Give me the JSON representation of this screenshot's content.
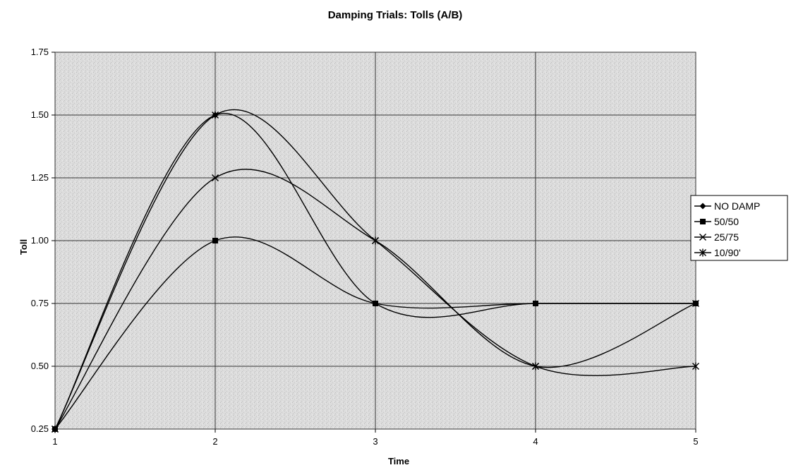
{
  "chart_data": {
    "type": "line",
    "title": "Damping Trials: Tolls (A/B)",
    "xlabel": "Time",
    "ylabel": "Toll",
    "x": [
      1,
      2,
      3,
      4,
      5
    ],
    "xlim": [
      1,
      5
    ],
    "ylim": [
      0.25,
      1.75
    ],
    "xticks": [
      "1",
      "2",
      "3",
      "4",
      "5"
    ],
    "yticks": [
      "0.25",
      "0.50",
      "0.75",
      "1.00",
      "1.25",
      "1.50",
      "1.75"
    ],
    "grid": true,
    "smoothed": true,
    "legend_position": "right",
    "series": [
      {
        "name": "NO DAMP",
        "marker": "diamond",
        "values": [
          0.25,
          1.5,
          0.75,
          0.75,
          0.75
        ]
      },
      {
        "name": "50/50",
        "marker": "square",
        "values": [
          0.25,
          1.0,
          0.75,
          0.75,
          0.75
        ]
      },
      {
        "name": "25/75",
        "marker": "x",
        "values": [
          0.25,
          1.25,
          1.0,
          0.5,
          0.75
        ]
      },
      {
        "name": "10/90'",
        "marker": "star",
        "values": [
          0.25,
          1.5,
          1.0,
          0.5,
          0.5
        ]
      }
    ]
  }
}
